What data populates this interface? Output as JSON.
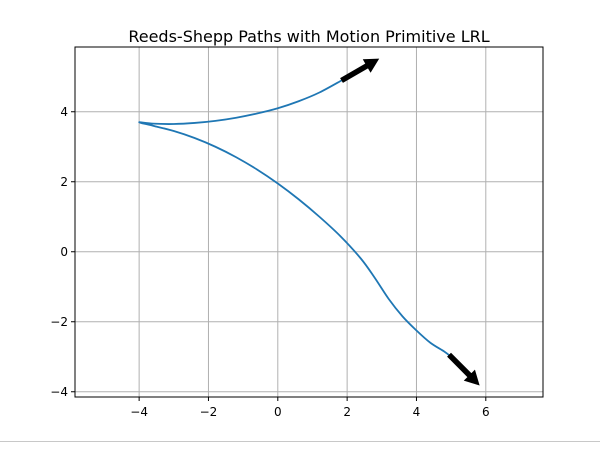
{
  "chart_data": {
    "type": "line",
    "title": "Reeds-Shepp Paths with Motion Primitive LRL",
    "xlabel": "",
    "ylabel": "",
    "xlim": [
      -5.85,
      7.65
    ],
    "ylim": [
      -4.15,
      5.85
    ],
    "xticks": [
      -4,
      -2,
      0,
      2,
      4,
      6
    ],
    "yticks": [
      -4,
      -2,
      0,
      2,
      4
    ],
    "xtick_labels": [
      "−4",
      "−2",
      "0",
      "2",
      "4",
      "6"
    ],
    "ytick_labels": [
      "−4",
      "−2",
      "0",
      "2",
      "4"
    ],
    "grid": true,
    "series": [
      {
        "color": "#1f77b4",
        "x": [
          1.85,
          1.2,
          0.6,
          0.0,
          -0.6,
          -1.2,
          -1.8,
          -2.4,
          -3.0,
          -3.6,
          -4.0,
          -3.6,
          -3.0,
          -2.4,
          -1.8,
          -1.2,
          -0.6,
          0.0,
          0.6,
          1.2,
          1.8,
          2.4,
          2.8,
          3.2,
          3.6,
          4.0,
          4.4,
          4.8,
          5.0
        ],
        "y": [
          4.9,
          4.55,
          4.3,
          4.1,
          3.95,
          3.83,
          3.74,
          3.68,
          3.65,
          3.66,
          3.7,
          3.6,
          3.45,
          3.25,
          3.0,
          2.7,
          2.35,
          1.95,
          1.5,
          1.0,
          0.45,
          -0.2,
          -0.75,
          -1.35,
          -1.85,
          -2.25,
          -2.6,
          -2.85,
          -3.0
        ]
      }
    ],
    "arrows": [
      {
        "x": 1.85,
        "y": 4.9,
        "dx": 1.05,
        "dy": 0.6,
        "color": "#000000"
      },
      {
        "x": 4.95,
        "y": -2.95,
        "dx": 0.85,
        "dy": -0.85,
        "color": "#000000"
      }
    ]
  }
}
